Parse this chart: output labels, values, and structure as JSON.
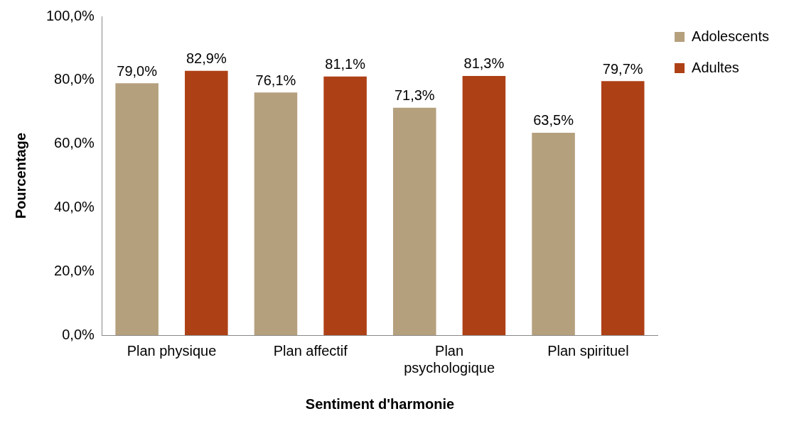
{
  "chart_data": {
    "type": "bar",
    "xlabel": "Sentiment d'harmonie",
    "ylabel": "Pourcentage",
    "categories": [
      "Plan physique",
      "Plan affectif",
      "Plan psychologique",
      "Plan spirituel"
    ],
    "series": [
      {
        "name": "Adolescents",
        "color": "#b5a07e",
        "values": [
          79.0,
          76.1,
          71.3,
          63.5
        ],
        "value_labels": [
          "79,0%",
          "76,1%",
          "71,3%",
          "63,5%"
        ]
      },
      {
        "name": "Adultes",
        "color": "#ae4016",
        "values": [
          82.9,
          81.1,
          81.3,
          79.7
        ],
        "value_labels": [
          "82,9%",
          "81,1%",
          "81,3%",
          "79,7%"
        ]
      }
    ],
    "ylim": [
      0,
      100
    ],
    "yticks": [
      {
        "value": 0,
        "label": "0,0%"
      },
      {
        "value": 20,
        "label": "20,0%"
      },
      {
        "value": 40,
        "label": "40,0%"
      },
      {
        "value": 60,
        "label": "60,0%"
      },
      {
        "value": 80,
        "label": "80,0%"
      },
      {
        "value": 100,
        "label": "100,0%"
      }
    ],
    "grid": false,
    "legend": "top right"
  }
}
